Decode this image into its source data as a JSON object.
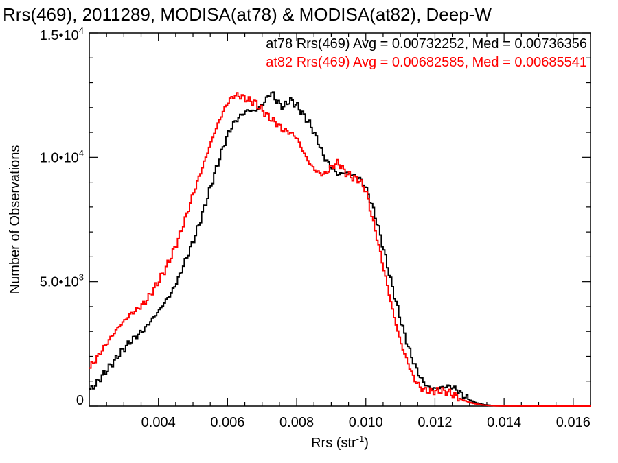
{
  "chart_data": {
    "type": "line",
    "title": "Rrs(469), 2011289, MODISA(at78) & MODISA(at82), Deep-W",
    "xlabel": "Rrs (str",
    "xlabel_superscript": "-1",
    "xlabel_suffix": ")",
    "ylabel": "Number of Observations",
    "xlim": [
      0.002,
      0.0165
    ],
    "ylim": [
      0,
      15000
    ],
    "xticks": [
      {
        "value": 0.004,
        "label": "0.004"
      },
      {
        "value": 0.006,
        "label": "0.006"
      },
      {
        "value": 0.008,
        "label": "0.008"
      },
      {
        "value": 0.01,
        "label": "0.010"
      },
      {
        "value": 0.012,
        "label": "0.012"
      },
      {
        "value": 0.014,
        "label": "0.014"
      },
      {
        "value": 0.016,
        "label": "0.016"
      }
    ],
    "yticks": [
      {
        "value": 0,
        "label": "0",
        "sup": ""
      },
      {
        "value": 5000,
        "label": "5.0•10",
        "sup": "3"
      },
      {
        "value": 10000,
        "label": "1.0•10",
        "sup": "4"
      },
      {
        "value": 15000,
        "label": "1.5•10",
        "sup": "4"
      }
    ],
    "annotations": [
      {
        "text": "at78 Rrs(469) Avg = 0.00732252, Med = 0.00736356",
        "color": "#000000"
      },
      {
        "text": "at82 Rrs(469) Avg = 0.00682585, Med = 0.00685541",
        "color": "#ff0000"
      }
    ],
    "series": [
      {
        "color": "#000000",
        "x": [
          0.002,
          0.0022,
          0.0024,
          0.0026,
          0.0028,
          0.003,
          0.0032,
          0.0034,
          0.0036,
          0.0038,
          0.004,
          0.0042,
          0.0044,
          0.0046,
          0.0048,
          0.005,
          0.0052,
          0.0054,
          0.0056,
          0.0058,
          0.006,
          0.0062,
          0.0064,
          0.0066,
          0.0068,
          0.007,
          0.0072,
          0.0073,
          0.0074,
          0.0076,
          0.0078,
          0.008,
          0.0082,
          0.0084,
          0.0086,
          0.0088,
          0.009,
          0.0092,
          0.0094,
          0.0096,
          0.0098,
          0.01,
          0.0102,
          0.0104,
          0.0106,
          0.0108,
          0.011,
          0.0112,
          0.0114,
          0.0116,
          0.0118,
          0.012,
          0.0122,
          0.0124,
          0.0126,
          0.0128,
          0.013,
          0.0132,
          0.0134,
          0.0136,
          0.0138,
          0.014,
          0.0145,
          0.015,
          0.0165
        ],
        "y": [
          600,
          900,
          1250,
          1600,
          1950,
          2300,
          2600,
          2850,
          3100,
          3450,
          3800,
          4200,
          4600,
          5200,
          5900,
          6600,
          7400,
          8300,
          9200,
          10100,
          10900,
          11400,
          11700,
          11900,
          11850,
          12100,
          12500,
          12600,
          12300,
          12000,
          12300,
          12100,
          11700,
          11300,
          10700,
          10000,
          9600,
          9300,
          9400,
          9300,
          9200,
          8800,
          8000,
          7000,
          5800,
          4600,
          3500,
          2500,
          1700,
          1100,
          750,
          700,
          750,
          800,
          700,
          450,
          250,
          130,
          60,
          30,
          15,
          8,
          3,
          1,
          0
        ]
      },
      {
        "color": "#ff0000",
        "x": [
          0.002,
          0.0022,
          0.0024,
          0.0026,
          0.0028,
          0.003,
          0.0032,
          0.0034,
          0.0036,
          0.0038,
          0.004,
          0.0042,
          0.0044,
          0.0046,
          0.0048,
          0.005,
          0.0052,
          0.0054,
          0.0056,
          0.0058,
          0.006,
          0.0062,
          0.0064,
          0.0066,
          0.0068,
          0.007,
          0.0072,
          0.0074,
          0.0076,
          0.0078,
          0.008,
          0.0082,
          0.0084,
          0.0086,
          0.0088,
          0.009,
          0.0092,
          0.0094,
          0.0096,
          0.0098,
          0.01,
          0.0102,
          0.0104,
          0.0106,
          0.0108,
          0.011,
          0.0112,
          0.0114,
          0.0116,
          0.0118,
          0.012,
          0.0122,
          0.0124,
          0.0126,
          0.0128,
          0.013,
          0.0132,
          0.0134,
          0.0136,
          0.0138,
          0.014,
          0.0145,
          0.015,
          0.0165
        ],
        "y": [
          1500,
          1900,
          2300,
          2700,
          3100,
          3400,
          3700,
          3900,
          4150,
          4550,
          5000,
          5500,
          6100,
          6800,
          7600,
          8500,
          9300,
          10100,
          10900,
          11600,
          12200,
          12500,
          12450,
          12300,
          12200,
          11900,
          11600,
          11400,
          11100,
          11000,
          10800,
          10200,
          9700,
          9400,
          9300,
          9600,
          9800,
          9400,
          9200,
          9100,
          8700,
          7500,
          6300,
          5000,
          3700,
          2600,
          1800,
          1100,
          700,
          600,
          600,
          620,
          550,
          400,
          250,
          150,
          80,
          40,
          20,
          10,
          5,
          2,
          1,
          0
        ]
      }
    ]
  }
}
